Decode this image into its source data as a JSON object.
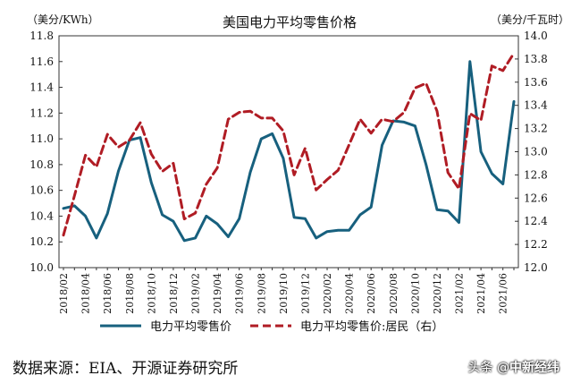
{
  "chart_data": {
    "type": "line",
    "title": "美国电力平均零售价格",
    "left_axis_label": "美分/KWh",
    "right_axis_label": "美分/千瓦时",
    "left_ylim": [
      10.0,
      11.8
    ],
    "left_ticks": [
      "10.0",
      "10.2",
      "10.4",
      "10.6",
      "10.8",
      "11.0",
      "11.2",
      "11.4",
      "11.6",
      "11.8"
    ],
    "right_ylim": [
      12.0,
      14.0
    ],
    "right_ticks": [
      "12.0",
      "12.2",
      "12.4",
      "12.6",
      "12.8",
      "13.0",
      "13.2",
      "13.4",
      "13.6",
      "13.8",
      "14.0"
    ],
    "x": [
      "2018/02",
      "2018/03",
      "2018/04",
      "2018/05",
      "2018/06",
      "2018/07",
      "2018/08",
      "2018/09",
      "2018/10",
      "2018/11",
      "2018/12",
      "2019/01",
      "2019/02",
      "2019/03",
      "2019/04",
      "2019/05",
      "2019/06",
      "2019/07",
      "2019/08",
      "2019/09",
      "2019/10",
      "2019/11",
      "2019/12",
      "2020/01",
      "2020/02",
      "2020/03",
      "2020/04",
      "2020/05",
      "2020/06",
      "2020/07",
      "2020/08",
      "2020/09",
      "2020/10",
      "2020/11",
      "2020/12",
      "2021/01",
      "2021/02",
      "2021/03",
      "2021/04",
      "2021/05",
      "2021/06",
      "2021/07"
    ],
    "x_tick_labels": [
      "2018/02",
      "2018/04",
      "2018/06",
      "2018/08",
      "2018/10",
      "2018/12",
      "2019/02",
      "2019/04",
      "2019/06",
      "2019/08",
      "2019/10",
      "2019/12",
      "2020/02",
      "2020/04",
      "2020/06",
      "2020/08",
      "2020/10",
      "2020/12",
      "2021/02",
      "2021/04",
      "2021/06"
    ],
    "grid": false,
    "legend_position": "bottom",
    "series": [
      {
        "name": "电力平均零售价",
        "axis": "left",
        "style": "solid",
        "color": "#17607e",
        "values": [
          10.46,
          10.48,
          10.4,
          10.23,
          10.42,
          10.75,
          10.99,
          11.01,
          10.66,
          10.41,
          10.36,
          10.21,
          10.23,
          10.4,
          10.34,
          10.24,
          10.38,
          10.74,
          11.0,
          11.04,
          10.85,
          10.39,
          10.38,
          10.23,
          10.28,
          10.29,
          10.29,
          10.41,
          10.47,
          10.95,
          11.14,
          11.13,
          11.1,
          10.8,
          10.45,
          10.44,
          10.35,
          11.6,
          10.9,
          10.73,
          10.65,
          11.29
        ]
      },
      {
        "name": "电力平均零售价:居民（右）",
        "axis": "right",
        "style": "dashed",
        "color": "#b01c24",
        "values": [
          12.28,
          12.62,
          12.97,
          12.87,
          13.15,
          13.04,
          13.1,
          13.25,
          12.98,
          12.83,
          12.9,
          12.42,
          12.47,
          12.72,
          12.86,
          13.28,
          13.34,
          13.35,
          13.29,
          13.29,
          13.18,
          12.8,
          13.03,
          12.67,
          12.76,
          12.84,
          13.06,
          13.28,
          13.16,
          13.28,
          13.26,
          13.34,
          13.55,
          13.59,
          13.35,
          12.82,
          12.68,
          13.33,
          13.27,
          13.74,
          13.7,
          13.85
        ]
      }
    ]
  },
  "footer": {
    "source": "数据来源：EIA、开源证券研究所",
    "watermark_prefix": "头条",
    "watermark_at": " @",
    "watermark_brand": "中新经纬"
  }
}
